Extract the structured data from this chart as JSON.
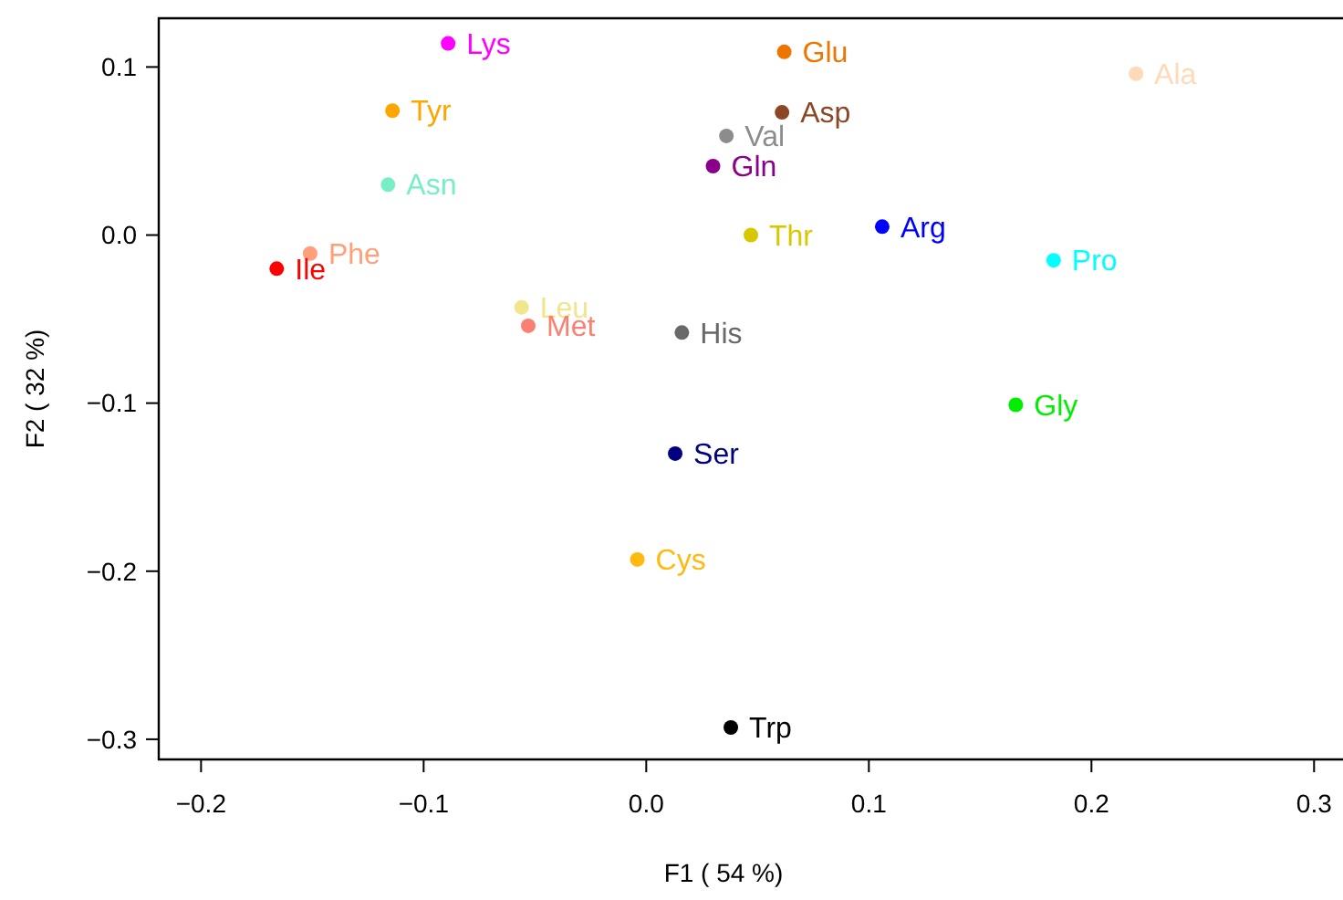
{
  "chart_data": {
    "type": "scatter",
    "xlabel": "F1 ( 54 %)",
    "ylabel": "F2 ( 32 %)",
    "xlim": [
      -0.219,
      0.313
    ],
    "ylim": [
      -0.312,
      0.129
    ],
    "xticks": [
      {
        "value": -0.2,
        "label": "−0.2"
      },
      {
        "value": -0.1,
        "label": "−0.1"
      },
      {
        "value": 0,
        "label": "0.0"
      },
      0.1,
      0.2,
      0.3
    ],
    "yticks": [
      {
        "value": -0.3,
        "label": "−0.3"
      },
      {
        "value": -0.2,
        "label": "−0.2"
      },
      {
        "value": -0.1,
        "label": "−0.1"
      },
      {
        "value": 0,
        "label": "0.0"
      },
      0.1
    ],
    "marker": "circle",
    "grid": false,
    "series": [
      {
        "name": "Lys",
        "color": "#ff00ff",
        "x": [
          -0.089
        ],
        "values": [
          0.114
        ]
      },
      {
        "name": "Glu",
        "color": "#ee7600",
        "x": [
          0.062
        ],
        "values": [
          0.109
        ]
      },
      {
        "name": "Ala",
        "color": "#ffdab9",
        "x": [
          0.22
        ],
        "values": [
          0.096
        ]
      },
      {
        "name": "Tyr",
        "color": "#ffa500",
        "x": [
          -0.114
        ],
        "values": [
          0.074
        ]
      },
      {
        "name": "Asp",
        "color": "#8b4726",
        "x": [
          0.061
        ],
        "values": [
          0.073
        ]
      },
      {
        "name": "Val",
        "color": "#8c8c8c",
        "x": [
          0.036
        ],
        "values": [
          0.059
        ]
      },
      {
        "name": "Asn",
        "color": "#76eec6",
        "x": [
          -0.116
        ],
        "values": [
          0.03
        ]
      },
      {
        "name": "Gln",
        "color": "#8b008b",
        "x": [
          0.03
        ],
        "values": [
          0.041
        ]
      },
      {
        "name": "Thr",
        "color": "#d8c800",
        "x": [
          0.047
        ],
        "values": [
          0.0
        ]
      },
      {
        "name": "Arg",
        "color": "#0000ff",
        "x": [
          0.106
        ],
        "values": [
          0.005
        ]
      },
      {
        "name": "Phe",
        "color": "#ffa07a",
        "x": [
          -0.151
        ],
        "values": [
          -0.011
        ]
      },
      {
        "name": "Ile",
        "color": "#ff0000",
        "x": [
          -0.166
        ],
        "values": [
          -0.02
        ]
      },
      {
        "name": "Pro",
        "color": "#00ffff",
        "x": [
          0.183
        ],
        "values": [
          -0.015
        ]
      },
      {
        "name": "Leu",
        "color": "#f0e68c",
        "x": [
          -0.056
        ],
        "values": [
          -0.043
        ]
      },
      {
        "name": "Met",
        "color": "#fa8072",
        "x": [
          -0.053
        ],
        "values": [
          -0.054
        ]
      },
      {
        "name": "His",
        "color": "#696969",
        "x": [
          0.016
        ],
        "values": [
          -0.058
        ]
      },
      {
        "name": "Gly",
        "color": "#00ee00",
        "x": [
          0.166
        ],
        "values": [
          -0.101
        ]
      },
      {
        "name": "Ser",
        "color": "#000080",
        "x": [
          0.013
        ],
        "values": [
          -0.13
        ]
      },
      {
        "name": "Cys",
        "color": "#ffb90f",
        "x": [
          -0.004
        ],
        "values": [
          -0.193
        ]
      },
      {
        "name": "Trp",
        "color": "#000000",
        "x": [
          0.038
        ],
        "values": [
          -0.293
        ]
      }
    ]
  }
}
